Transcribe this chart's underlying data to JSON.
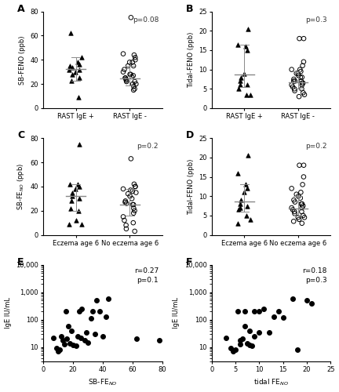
{
  "panel_A": {
    "label": "A",
    "group1_label": "RAST IgE +",
    "group2_label": "RAST IgE -",
    "group1_data": [
      32,
      35,
      38,
      36,
      30,
      28,
      34,
      25,
      23,
      62,
      9,
      42,
      32
    ],
    "group2_data": [
      75,
      40,
      42,
      44,
      45,
      38,
      35,
      28,
      26,
      25,
      22,
      20,
      18,
      16,
      15,
      30,
      32,
      27,
      24,
      23,
      22,
      20,
      28,
      25,
      35,
      38
    ],
    "group1_median": 32.5,
    "group2_median": 24.5,
    "group1_iqr": [
      23,
      42
    ],
    "group2_iqr": [
      19,
      35
    ],
    "ylabel": "SB-FENO (ppb)",
    "pvalue": "p=0.08",
    "ylim": [
      0,
      80
    ],
    "yticks": [
      0,
      20,
      40,
      60,
      80
    ]
  },
  "panel_B": {
    "label": "B",
    "group1_label": "RAST IgE +",
    "group2_label": "RAST IgE -",
    "group1_data": [
      20.5,
      16.5,
      16,
      15,
      9,
      8,
      7,
      6,
      6,
      5,
      3.5,
      3.5
    ],
    "group2_data": [
      18,
      18,
      12,
      11,
      10,
      9.5,
      9,
      8.5,
      8,
      7.5,
      7,
      7,
      6.5,
      6.5,
      6,
      6,
      5.5,
      5,
      5,
      4.5,
      4,
      3.5,
      3,
      7,
      8,
      9,
      10
    ],
    "group1_median": 8.8,
    "group2_median": 6.6,
    "group1_iqr": [
      5.5,
      16.5
    ],
    "group2_iqr": [
      5,
      9.5
    ],
    "ylabel": "Tidal-FENO (ppb)",
    "pvalue": "p=0.3",
    "ylim": [
      0,
      25
    ],
    "yticks": [
      0,
      5,
      10,
      15,
      20,
      25
    ]
  },
  "panel_C": {
    "label": "C",
    "group1_label": "Eczema age 6",
    "group2_label": "No eczema age 6",
    "group1_data": [
      75,
      42,
      42,
      40,
      38,
      35,
      32,
      30,
      28,
      22,
      20,
      9,
      9,
      12
    ],
    "group2_data": [
      63,
      40,
      40,
      42,
      38,
      36,
      34,
      32,
      30,
      28,
      26,
      25,
      22,
      20,
      18,
      15,
      12,
      10,
      8,
      5,
      3,
      35,
      37,
      27,
      25
    ],
    "group1_median": 31.9,
    "group2_median": 25.3,
    "group1_iqr": [
      20,
      42
    ],
    "group2_iqr": [
      16,
      38
    ],
    "ylabel": "SB-FE$_{NO}$ (ppb)",
    "pvalue": "p=0.2",
    "ylim": [
      0,
      80
    ],
    "yticks": [
      0,
      20,
      40,
      60,
      80
    ]
  },
  "panel_D": {
    "label": "D",
    "group1_label": "Eczema age 6",
    "group2_label": "No eczema age 6",
    "group1_data": [
      20.5,
      16,
      13,
      12,
      11,
      9,
      8,
      7.5,
      7,
      6.5,
      5,
      4,
      3
    ],
    "group2_data": [
      18,
      18,
      15,
      13,
      12,
      11,
      10.5,
      10,
      9.5,
      9,
      8.5,
      8,
      8,
      7.5,
      7,
      7,
      6.5,
      6,
      6,
      5.5,
      5,
      4.5,
      4,
      3.5,
      3,
      4.5
    ],
    "group1_median": 8.6,
    "group2_median": 6.9,
    "group1_iqr": [
      6,
      13
    ],
    "group2_iqr": [
      5,
      10
    ],
    "ylabel": "Tidal-FENO (ppb)",
    "pvalue": "p=0.2",
    "ylim": [
      0,
      25
    ],
    "yticks": [
      0,
      5,
      10,
      15,
      20,
      25
    ]
  },
  "panel_E": {
    "label": "E",
    "xlabel": "SB-FE$_{NO}$",
    "ylabel": "IgE IU/mL",
    "pvalue": "r=0.27\np=0.1",
    "x_data": [
      7,
      9,
      10,
      11,
      12,
      13,
      14,
      15,
      16,
      17,
      18,
      19,
      20,
      22,
      23,
      24,
      25,
      26,
      28,
      29,
      30,
      32,
      33,
      35,
      36,
      38,
      40,
      42,
      44,
      63,
      78
    ],
    "y_data": [
      22,
      9,
      7,
      8,
      25,
      18,
      13,
      200,
      20,
      60,
      14,
      40,
      12,
      11,
      25,
      200,
      22,
      250,
      18,
      35,
      15,
      110,
      200,
      30,
      500,
      200,
      25,
      130,
      600,
      20,
      18
    ],
    "xlim": [
      0,
      80
    ],
    "ylim_log": [
      3,
      10000
    ],
    "yticks": [
      10,
      100,
      1000,
      10000
    ],
    "xticks": [
      0,
      20,
      40,
      60,
      80
    ]
  },
  "panel_F": {
    "label": "F",
    "xlabel": "tidal FE$_{NO}$",
    "ylabel": "IgE IU/mL",
    "pvalue": "r=0.18\np=0.3",
    "x_data": [
      3,
      4,
      4.5,
      5,
      5.5,
      6,
      6,
      6.5,
      7,
      7,
      7.5,
      8,
      8,
      8.5,
      9,
      9,
      10,
      10,
      11,
      12,
      13,
      14,
      15,
      17,
      18,
      20,
      21
    ],
    "y_data": [
      22,
      9,
      7,
      8,
      200,
      18,
      13,
      20,
      200,
      60,
      14,
      40,
      12,
      11,
      25,
      200,
      35,
      200,
      250,
      35,
      130,
      200,
      120,
      600,
      8,
      500,
      400
    ],
    "xlim": [
      0,
      25
    ],
    "ylim_log": [
      3,
      10000
    ],
    "yticks": [
      10,
      100,
      1000,
      10000
    ],
    "xticks": [
      0,
      5,
      10,
      15,
      20,
      25
    ]
  }
}
